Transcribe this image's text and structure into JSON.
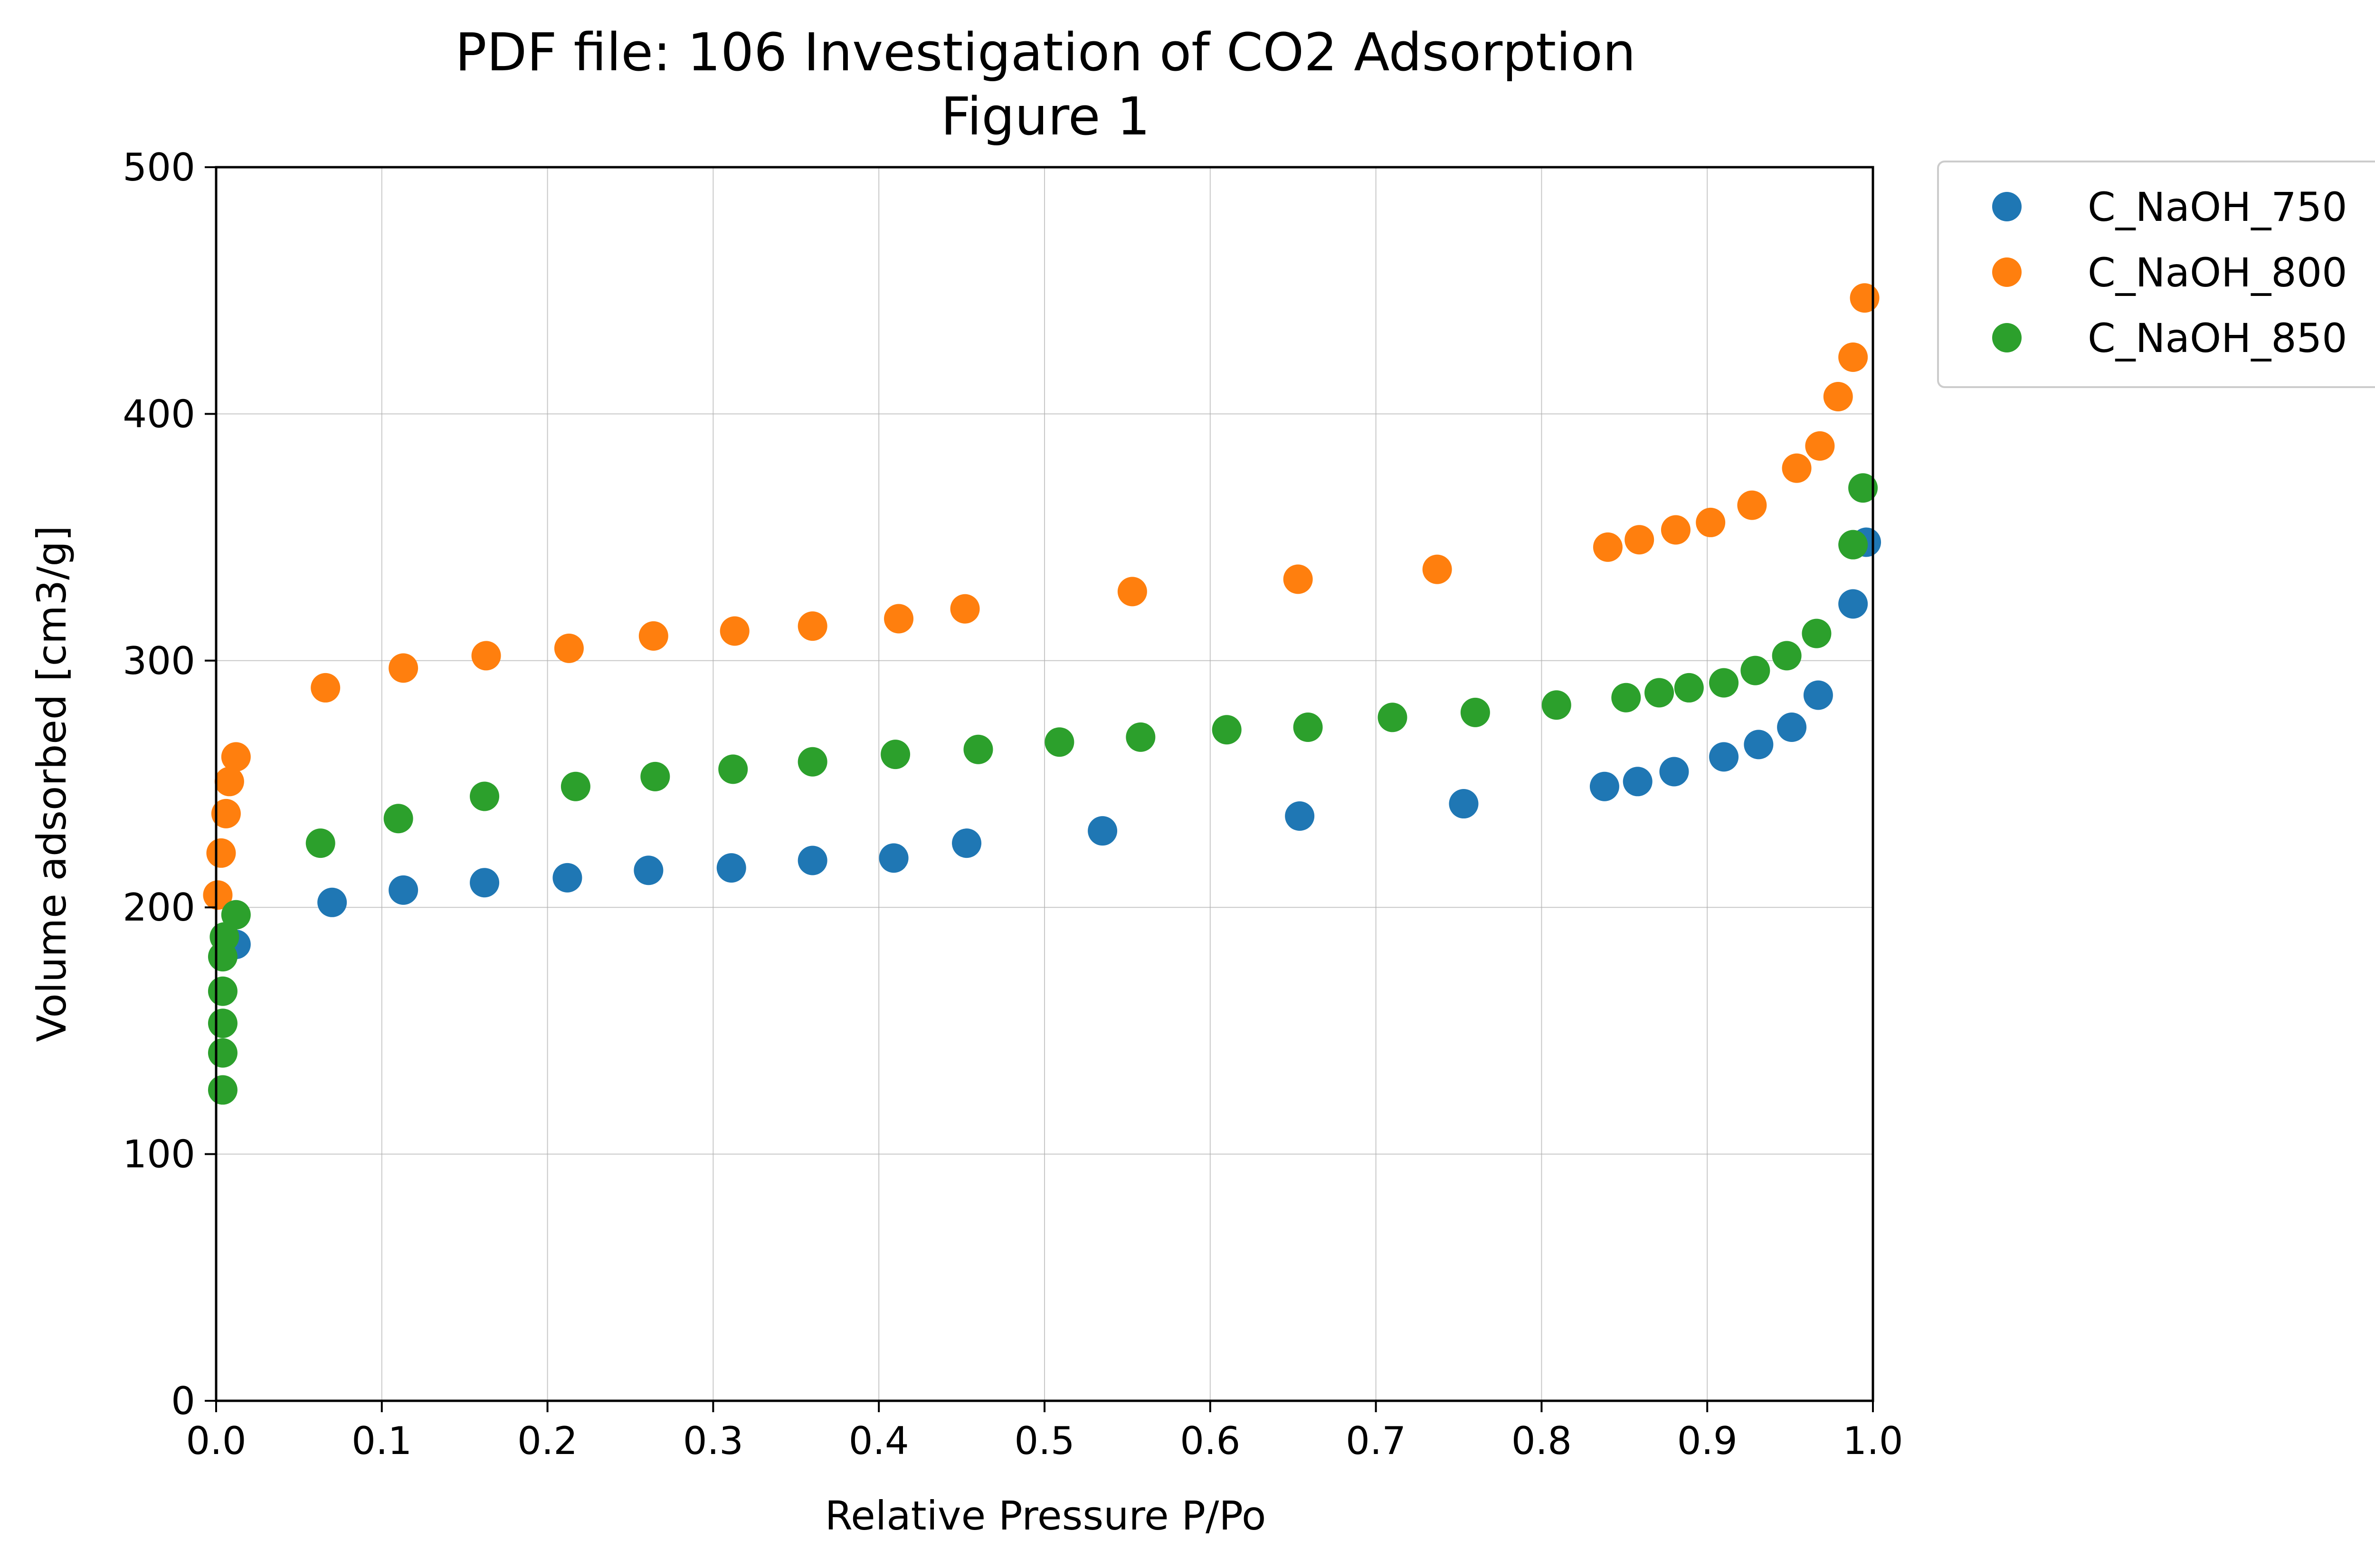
{
  "chart_data": {
    "type": "scatter",
    "title": "PDF file: 106 Investigation of CO2 Adsorption",
    "subtitle": "Figure 1",
    "xlabel": "Relative Pressure P/Po",
    "ylabel": "Volume adsorbed [cm3/g]",
    "xlim": [
      0.0,
      1.0
    ],
    "ylim": [
      0,
      500
    ],
    "xticks": [
      "0.0",
      "0.1",
      "0.2",
      "0.3",
      "0.4",
      "0.5",
      "0.6",
      "0.7",
      "0.8",
      "0.9",
      "1.0"
    ],
    "yticks": [
      "0",
      "100",
      "200",
      "300",
      "400",
      "500"
    ],
    "grid": true,
    "legend_position": "outside right, top",
    "series": [
      {
        "name": "C_NaOH_750",
        "color": "#1f77b4",
        "points": [
          [
            0.012,
            185
          ],
          [
            0.07,
            202
          ],
          [
            0.113,
            207
          ],
          [
            0.162,
            210
          ],
          [
            0.212,
            212
          ],
          [
            0.261,
            215
          ],
          [
            0.311,
            216
          ],
          [
            0.36,
            219
          ],
          [
            0.409,
            220
          ],
          [
            0.453,
            226
          ],
          [
            0.535,
            231
          ],
          [
            0.654,
            237
          ],
          [
            0.753,
            242
          ],
          [
            0.838,
            249
          ],
          [
            0.858,
            251
          ],
          [
            0.88,
            255
          ],
          [
            0.91,
            261
          ],
          [
            0.931,
            266
          ],
          [
            0.951,
            273
          ],
          [
            0.967,
            286
          ],
          [
            0.988,
            323
          ],
          [
            0.996,
            348
          ]
        ]
      },
      {
        "name": "C_NaOH_800",
        "color": "#ff7f0e",
        "points": [
          [
            0.001,
            205
          ],
          [
            0.003,
            222
          ],
          [
            0.006,
            238
          ],
          [
            0.008,
            251
          ],
          [
            0.012,
            261
          ],
          [
            0.066,
            289
          ],
          [
            0.113,
            297
          ],
          [
            0.163,
            302
          ],
          [
            0.213,
            305
          ],
          [
            0.264,
            310
          ],
          [
            0.313,
            312
          ],
          [
            0.36,
            314
          ],
          [
            0.412,
            317
          ],
          [
            0.452,
            321
          ],
          [
            0.553,
            328
          ],
          [
            0.653,
            333
          ],
          [
            0.737,
            337
          ],
          [
            0.84,
            346
          ],
          [
            0.859,
            349
          ],
          [
            0.881,
            353
          ],
          [
            0.902,
            356
          ],
          [
            0.927,
            363
          ],
          [
            0.954,
            378
          ],
          [
            0.968,
            387
          ],
          [
            0.979,
            407
          ],
          [
            0.988,
            423
          ],
          [
            0.995,
            447
          ]
        ]
      },
      {
        "name": "C_NaOH_850",
        "color": "#2ca02c",
        "points": [
          [
            0.004,
            126
          ],
          [
            0.004,
            141
          ],
          [
            0.004,
            153
          ],
          [
            0.004,
            166
          ],
          [
            0.004,
            180
          ],
          [
            0.005,
            188
          ],
          [
            0.012,
            197
          ],
          [
            0.063,
            226
          ],
          [
            0.11,
            236
          ],
          [
            0.162,
            245
          ],
          [
            0.217,
            249
          ],
          [
            0.265,
            253
          ],
          [
            0.312,
            256
          ],
          [
            0.36,
            259
          ],
          [
            0.41,
            262
          ],
          [
            0.46,
            264
          ],
          [
            0.509,
            267
          ],
          [
            0.558,
            269
          ],
          [
            0.61,
            272
          ],
          [
            0.659,
            273
          ],
          [
            0.71,
            277
          ],
          [
            0.76,
            279
          ],
          [
            0.809,
            282
          ],
          [
            0.851,
            285
          ],
          [
            0.871,
            287
          ],
          [
            0.889,
            289
          ],
          [
            0.91,
            291
          ],
          [
            0.929,
            296
          ],
          [
            0.948,
            302
          ],
          [
            0.966,
            311
          ],
          [
            0.988,
            347
          ],
          [
            0.994,
            370
          ]
        ]
      }
    ]
  }
}
